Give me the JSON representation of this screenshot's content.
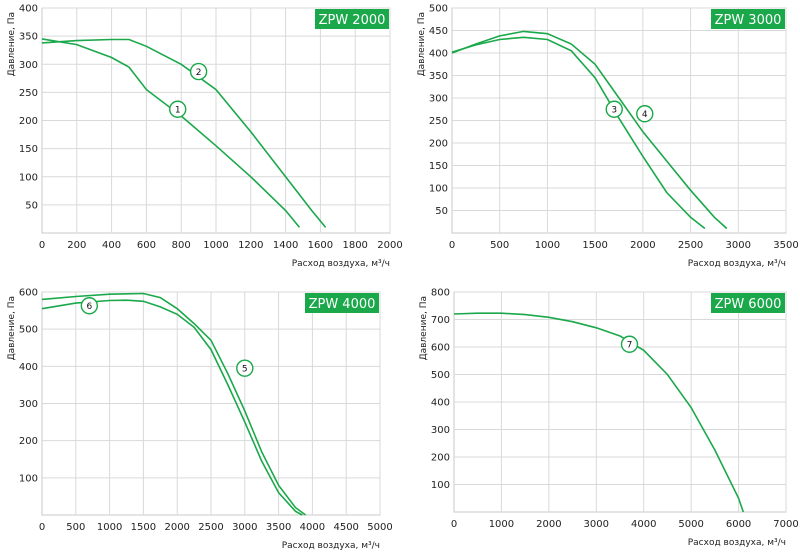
{
  "chart_data": [
    {
      "type": "line",
      "title": "ZPW 2000",
      "xlabel": "Расход воздуха, м³/ч",
      "ylabel": "Давление, Па",
      "xlim": [
        0,
        2000
      ],
      "ylim": [
        0,
        400
      ],
      "xticks": [
        0,
        200,
        400,
        600,
        800,
        1000,
        1200,
        1400,
        1600,
        1800,
        2000
      ],
      "yticks": [
        50,
        100,
        150,
        200,
        250,
        300,
        350,
        400
      ],
      "grid": true,
      "accent": "#1aa84a",
      "series": [
        {
          "name": "1",
          "label_x": 780,
          "label_y": 220,
          "points": [
            [
              0,
              345
            ],
            [
              200,
              335
            ],
            [
              400,
              312
            ],
            [
              500,
              295
            ],
            [
              600,
              255
            ],
            [
              800,
              208
            ],
            [
              1000,
              155
            ],
            [
              1200,
              100
            ],
            [
              1400,
              40
            ],
            [
              1480,
              10
            ]
          ]
        },
        {
          "name": "2",
          "label_x": 900,
          "label_y": 287,
          "points": [
            [
              0,
              338
            ],
            [
              200,
              342
            ],
            [
              400,
              344
            ],
            [
              500,
              344
            ],
            [
              600,
              332
            ],
            [
              800,
              300
            ],
            [
              1000,
              255
            ],
            [
              1200,
              180
            ],
            [
              1400,
              100
            ],
            [
              1550,
              40
            ],
            [
              1630,
              10
            ]
          ]
        }
      ]
    },
    {
      "type": "line",
      "title": "ZPW 3000",
      "xlabel": "Расход воздуха, м³/ч",
      "ylabel": "Давление, Па",
      "xlim": [
        0,
        3500
      ],
      "ylim": [
        0,
        500
      ],
      "xticks": [
        0,
        500,
        1000,
        1500,
        2000,
        2500,
        3000,
        3500
      ],
      "yticks": [
        50,
        100,
        150,
        200,
        250,
        300,
        350,
        400,
        450,
        500
      ],
      "grid": true,
      "accent": "#1aa84a",
      "series": [
        {
          "name": "3",
          "label_x": 1700,
          "label_y": 275,
          "points": [
            [
              0,
              402
            ],
            [
              250,
              418
            ],
            [
              500,
              430
            ],
            [
              750,
              435
            ],
            [
              1000,
              430
            ],
            [
              1250,
              405
            ],
            [
              1500,
              345
            ],
            [
              1750,
              255
            ],
            [
              2000,
              170
            ],
            [
              2250,
              90
            ],
            [
              2500,
              35
            ],
            [
              2650,
              10
            ]
          ]
        },
        {
          "name": "4",
          "label_x": 2020,
          "label_y": 265,
          "points": [
            [
              0,
              400
            ],
            [
              250,
              420
            ],
            [
              500,
              438
            ],
            [
              750,
              448
            ],
            [
              1000,
              443
            ],
            [
              1250,
              420
            ],
            [
              1500,
              375
            ],
            [
              1750,
              300
            ],
            [
              2000,
              225
            ],
            [
              2250,
              160
            ],
            [
              2500,
              95
            ],
            [
              2750,
              35
            ],
            [
              2880,
              10
            ]
          ]
        }
      ]
    },
    {
      "type": "line",
      "title": "ZPW 4000",
      "xlabel": "Расход воздуха, м³/ч",
      "ylabel": "Давление, Па",
      "xlim": [
        0,
        5000
      ],
      "ylim": [
        0,
        600
      ],
      "xticks": [
        0,
        500,
        1000,
        1500,
        2000,
        2500,
        3000,
        3500,
        4000,
        4500,
        5000
      ],
      "yticks": [
        100,
        200,
        300,
        400,
        500,
        600
      ],
      "grid": true,
      "accent": "#1aa84a",
      "series": [
        {
          "name": "5",
          "label_x": 3000,
          "label_y": 395,
          "points": [
            [
              0,
              580
            ],
            [
              500,
              588
            ],
            [
              1000,
              594
            ],
            [
              1500,
              596
            ],
            [
              1750,
              585
            ],
            [
              2000,
              555
            ],
            [
              2250,
              515
            ],
            [
              2500,
              470
            ],
            [
              2750,
              380
            ],
            [
              3000,
              280
            ],
            [
              3250,
              170
            ],
            [
              3500,
              80
            ],
            [
              3750,
              20
            ],
            [
              3900,
              0
            ]
          ]
        },
        {
          "name": "6",
          "label_x": 700,
          "label_y": 563,
          "points": [
            [
              0,
              555
            ],
            [
              500,
              570
            ],
            [
              1000,
              577
            ],
            [
              1250,
              578
            ],
            [
              1500,
              575
            ],
            [
              1750,
              560
            ],
            [
              2000,
              540
            ],
            [
              2250,
              505
            ],
            [
              2500,
              445
            ],
            [
              2750,
              350
            ],
            [
              3000,
              250
            ],
            [
              3250,
              145
            ],
            [
              3500,
              60
            ],
            [
              3750,
              10
            ],
            [
              3850,
              0
            ]
          ]
        }
      ]
    },
    {
      "type": "line",
      "title": "ZPW 6000",
      "xlabel": "Расход воздуха, м³/ч",
      "ylabel": "Давление, Па",
      "xlim": [
        0,
        7000
      ],
      "ylim": [
        0,
        800
      ],
      "xticks": [
        0,
        1000,
        2000,
        3000,
        4000,
        5000,
        6000,
        7000
      ],
      "yticks": [
        100,
        200,
        300,
        400,
        500,
        600,
        700,
        800
      ],
      "grid": true,
      "accent": "#1aa84a",
      "series": [
        {
          "name": "7",
          "label_x": 3700,
          "label_y": 610,
          "points": [
            [
              0,
              720
            ],
            [
              500,
              723
            ],
            [
              1000,
              723
            ],
            [
              1500,
              718
            ],
            [
              2000,
              708
            ],
            [
              2500,
              692
            ],
            [
              3000,
              670
            ],
            [
              3500,
              640
            ],
            [
              4000,
              588
            ],
            [
              4500,
              500
            ],
            [
              5000,
              380
            ],
            [
              5500,
              225
            ],
            [
              6000,
              50
            ],
            [
              6100,
              0
            ]
          ]
        }
      ]
    }
  ]
}
